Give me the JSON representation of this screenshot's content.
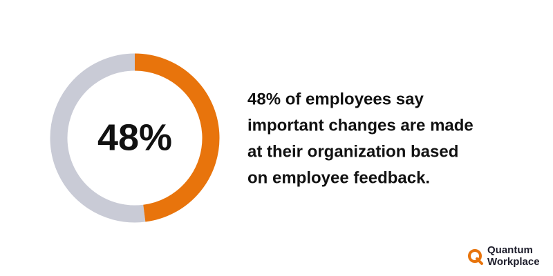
{
  "chart_data": {
    "type": "donut",
    "values": [
      48,
      52
    ],
    "value_labels": [
      "48%",
      null
    ],
    "colors": [
      "#e8740c",
      "#c9cbd6"
    ]
  },
  "caption": [
    "48% of employees say",
    "important changes are made",
    "at their organization based",
    "on employee feedback."
  ],
  "logo": {
    "line1": "Quantum",
    "line2": "Workplace"
  }
}
